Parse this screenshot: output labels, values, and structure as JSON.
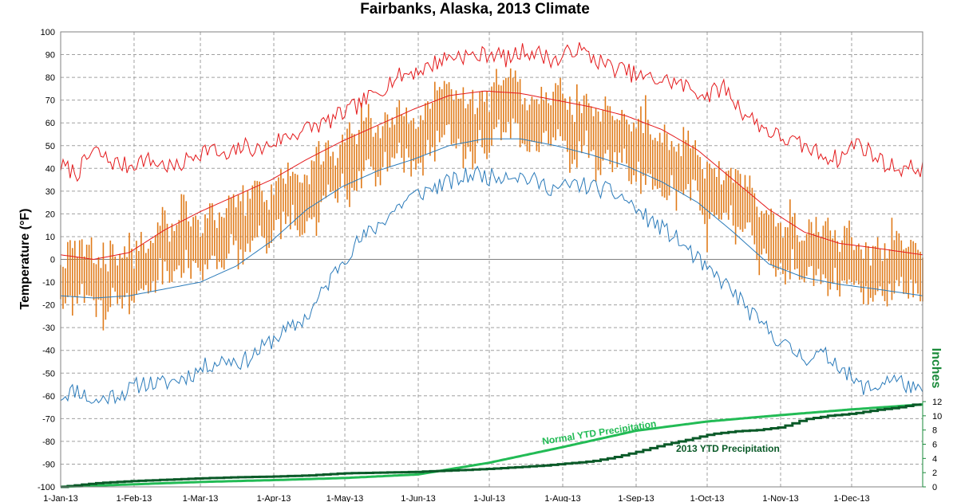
{
  "chart_data": {
    "type": "line",
    "title": "Fairbanks, Alaska, 2013 Climate",
    "ylabel": "Temperature (°F)",
    "y2label": "Inches",
    "ylim": [
      -100,
      100
    ],
    "y2lim": [
      0,
      12
    ],
    "y_ticks": [
      100,
      90,
      80,
      70,
      60,
      50,
      40,
      30,
      20,
      10,
      0,
      -10,
      -20,
      -30,
      -40,
      -50,
      -60,
      -70,
      -80,
      -90,
      -100
    ],
    "y2_ticks": [
      12,
      10,
      8,
      6,
      4,
      2,
      0
    ],
    "x_ticks": [
      {
        "label": "1-Jan-13",
        "day": 1
      },
      {
        "label": "1-Feb-13",
        "day": 32
      },
      {
        "label": "1-Mar-13",
        "day": 60
      },
      {
        "label": "1-Apr-13",
        "day": 91
      },
      {
        "label": "1-May-13",
        "day": 121
      },
      {
        "label": "1-Jun-13",
        "day": 152
      },
      {
        "label": "1-Jul-13",
        "day": 182
      },
      {
        "label": "1-Aug-13",
        "day": 213
      },
      {
        "label": "1-Sep-13",
        "day": 244
      },
      {
        "label": "1-Oct-13",
        "day": 274
      },
      {
        "label": "1-Nov-13",
        "day": 305
      },
      {
        "label": "1-Dec-13",
        "day": 335
      }
    ],
    "grid": true,
    "annotations": [
      {
        "text": "Normal YTD Precipitation",
        "series": "normal_precip",
        "color": "#22bb55"
      },
      {
        "text": "2013  YTD Precipitation",
        "series": "actual_precip",
        "color": "#0a5a28"
      }
    ],
    "colors": {
      "record_high": "#e41a1c",
      "record_low": "#2b7bba",
      "normal_high": "#e41a1c",
      "normal_low": "#2b7bba",
      "daily_range": "#e07b1a",
      "normal_precip": "#22bb55",
      "actual_precip": "#0a5a28",
      "y2_axis": "#1a8a3a"
    },
    "series": {
      "record_high": {
        "x": [
          1,
          8,
          15,
          22,
          29,
          36,
          43,
          50,
          57,
          64,
          71,
          78,
          85,
          92,
          99,
          106,
          113,
          120,
          127,
          134,
          141,
          148,
          155,
          162,
          169,
          176,
          183,
          190,
          197,
          204,
          211,
          218,
          225,
          232,
          239,
          246,
          253,
          260,
          267,
          274,
          281,
          288,
          295,
          302,
          309,
          316,
          323,
          330,
          337,
          344,
          351,
          358,
          365
        ],
        "y": [
          41,
          38,
          48,
          43,
          41,
          44,
          42,
          40,
          46,
          49,
          44,
          50,
          48,
          52,
          55,
          58,
          60,
          64,
          68,
          73,
          79,
          82,
          84,
          88,
          90,
          89,
          91,
          88,
          92,
          90,
          87,
          93,
          89,
          85,
          83,
          80,
          79,
          78,
          75,
          72,
          76,
          66,
          60,
          55,
          52,
          49,
          46,
          44,
          52,
          46,
          41,
          40,
          40
        ]
      },
      "record_low": {
        "x": [
          1,
          8,
          15,
          22,
          29,
          36,
          43,
          50,
          57,
          64,
          71,
          78,
          85,
          92,
          99,
          106,
          113,
          120,
          127,
          134,
          141,
          148,
          155,
          162,
          169,
          176,
          183,
          190,
          197,
          204,
          211,
          218,
          225,
          232,
          239,
          246,
          253,
          260,
          267,
          274,
          281,
          288,
          295,
          302,
          309,
          316,
          323,
          330,
          337,
          344,
          351,
          358,
          365
        ],
        "y": [
          -60,
          -57,
          -63,
          -60,
          -58,
          -54,
          -55,
          -53,
          -50,
          -46,
          -44,
          -45,
          -40,
          -34,
          -30,
          -24,
          -12,
          0,
          8,
          14,
          21,
          27,
          30,
          33,
          35,
          38,
          36,
          38,
          36,
          33,
          31,
          33,
          32,
          30,
          27,
          20,
          15,
          10,
          3,
          -5,
          -10,
          -18,
          -27,
          -33,
          -40,
          -43,
          -42,
          -46,
          -55,
          -57,
          -52,
          -55,
          -60
        ]
      },
      "normal_high": {
        "x": [
          1,
          15,
          30,
          45,
          60,
          75,
          90,
          105,
          120,
          135,
          150,
          165,
          180,
          195,
          210,
          225,
          240,
          255,
          270,
          285,
          300,
          315,
          330,
          345,
          365
        ],
        "y": [
          2,
          0,
          3,
          13,
          21,
          28,
          35,
          44,
          52,
          59,
          66,
          72,
          74,
          73,
          70,
          67,
          63,
          57,
          48,
          35,
          22,
          12,
          7,
          5,
          2
        ]
      },
      "normal_low": {
        "x": [
          1,
          15,
          30,
          45,
          60,
          75,
          90,
          105,
          120,
          135,
          150,
          165,
          180,
          195,
          210,
          225,
          240,
          255,
          270,
          285,
          300,
          315,
          330,
          345,
          365
        ],
        "y": [
          -16,
          -17,
          -16,
          -13,
          -10,
          -3,
          8,
          22,
          32,
          39,
          44,
          50,
          53,
          53,
          50,
          46,
          41,
          34,
          25,
          12,
          -2,
          -8,
          -11,
          -13,
          -16
        ]
      },
      "daily_range": {
        "spec": {
          "days": 365,
          "noise_amplitude": 10,
          "range_base": 14,
          "range_extra": 12,
          "seed": 42
        }
      },
      "normal_precip": {
        "x": [
          1,
          31,
          61,
          91,
          121,
          152,
          182,
          213,
          244,
          274,
          305,
          335,
          365
        ],
        "y": [
          0,
          0.35,
          0.7,
          0.95,
          1.25,
          1.75,
          3.4,
          5.6,
          7.9,
          9.2,
          10.1,
          10.9,
          11.6
        ]
      },
      "actual_precip": {
        "x": [
          1,
          15,
          30,
          45,
          60,
          75,
          90,
          105,
          120,
          135,
          150,
          165,
          180,
          195,
          205,
          215,
          225,
          235,
          245,
          255,
          265,
          275,
          285,
          295,
          305,
          315,
          325,
          335,
          345,
          355,
          365
        ],
        "y": [
          0,
          0.5,
          0.8,
          1.0,
          1.2,
          1.35,
          1.45,
          1.6,
          1.9,
          2.0,
          2.1,
          2.3,
          2.5,
          2.8,
          3.0,
          3.3,
          3.6,
          4.2,
          5.0,
          5.9,
          6.6,
          7.4,
          7.8,
          8.0,
          8.4,
          9.5,
          10.0,
          10.3,
          10.8,
          11.2,
          11.8
        ]
      }
    }
  }
}
